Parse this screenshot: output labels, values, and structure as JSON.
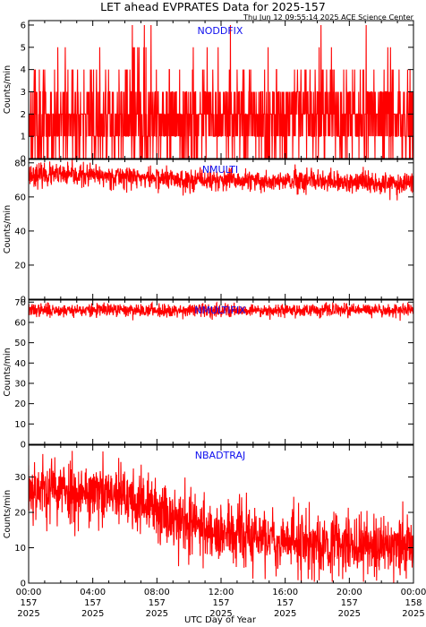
{
  "title": "LET ahead EVPRATES Data for 2025-157",
  "subtitle": "Thu Jun 12 09:55:14 2025 ACE Science Center",
  "xlabel": "UTC Day of Year",
  "colors": {
    "series": "#ff0000",
    "panel_label": "#1010ee",
    "axis": "#000000"
  },
  "x_ticks": [
    {
      "time": "00:00",
      "doy": "157",
      "year": "2025"
    },
    {
      "time": "04:00",
      "doy": "157",
      "year": "2025"
    },
    {
      "time": "08:00",
      "doy": "157",
      "year": "2025"
    },
    {
      "time": "12:00",
      "doy": "157",
      "year": "2025"
    },
    {
      "time": "16:00",
      "doy": "157",
      "year": "2025"
    },
    {
      "time": "20:00",
      "doy": "157",
      "year": "2025"
    },
    {
      "time": "00:00",
      "doy": "158",
      "year": "2025"
    }
  ],
  "chart_data": [
    {
      "type": "line",
      "name": "NODDFIX",
      "ylabel": "Counts/min",
      "xlim": [
        0,
        24
      ],
      "ylim": [
        0,
        6.2
      ],
      "yticks": [
        0,
        1,
        2,
        3,
        4,
        5,
        6
      ],
      "x_unit": "hours UTC",
      "profile": [
        [
          0,
          1.8
        ],
        [
          24,
          1.8
        ]
      ],
      "noise": 1.0,
      "discrete": true,
      "seed": 11
    },
    {
      "type": "line",
      "name": "NMULTI",
      "ylabel": "Counts/min",
      "xlim": [
        0,
        24
      ],
      "ylim": [
        0,
        82
      ],
      "yticks": [
        0,
        20,
        40,
        60,
        80
      ],
      "x_unit": "hours UTC",
      "profile": [
        [
          0,
          73
        ],
        [
          6,
          72
        ],
        [
          10,
          70
        ],
        [
          16,
          69
        ],
        [
          24,
          68
        ]
      ],
      "noise": 3.2,
      "discrete": false,
      "seed": 23
    },
    {
      "type": "line",
      "name": "NMULTIFIX",
      "ylabel": "Counts/min",
      "xlim": [
        0,
        24
      ],
      "ylim": [
        0,
        71
      ],
      "yticks": [
        0,
        10,
        20,
        30,
        40,
        50,
        60,
        70
      ],
      "x_unit": "hours UTC",
      "profile": [
        [
          0,
          66
        ],
        [
          24,
          66
        ]
      ],
      "noise": 1.6,
      "discrete": false,
      "seed": 37
    },
    {
      "type": "line",
      "name": "NBADTRAJ",
      "ylabel": "Counts/min",
      "xlim": [
        0,
        24
      ],
      "ylim": [
        0,
        39
      ],
      "yticks": [
        0,
        10,
        20,
        30
      ],
      "x_unit": "hours UTC",
      "profile": [
        [
          0,
          27
        ],
        [
          3,
          26
        ],
        [
          6,
          24
        ],
        [
          8,
          21
        ],
        [
          10,
          17
        ],
        [
          12,
          14
        ],
        [
          16,
          12
        ],
        [
          20,
          11
        ],
        [
          24,
          10
        ]
      ],
      "noise": 4.5,
      "discrete": false,
      "seed": 53
    }
  ]
}
